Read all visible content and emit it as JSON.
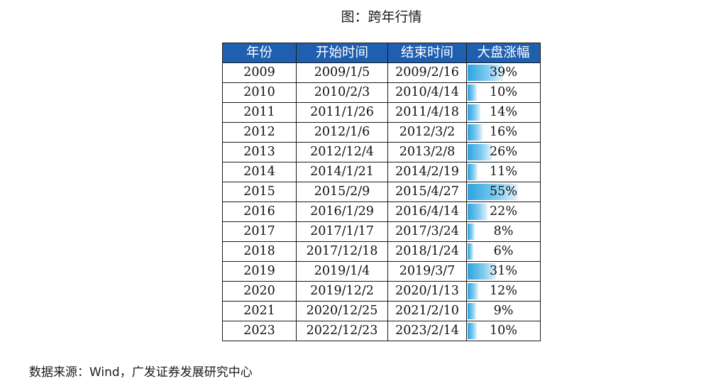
{
  "title": "图：跨年行情",
  "source": "数据来源：Wind，广发证券发展研究中心",
  "colors": {
    "header_bg": "#1f5fb0",
    "bar_start": "#2ca3df",
    "bar_end": "#e3f4fc"
  },
  "chart_data": {
    "type": "table",
    "columns": [
      "年份",
      "开始时间",
      "结束时间",
      "大盘涨幅"
    ],
    "rows": [
      {
        "year": "2009",
        "start": "2009/1/5",
        "end": "2009/2/16",
        "gain": "39%",
        "gain_value": 39
      },
      {
        "year": "2010",
        "start": "2010/2/3",
        "end": "2010/4/14",
        "gain": "10%",
        "gain_value": 10
      },
      {
        "year": "2011",
        "start": "2011/1/26",
        "end": "2011/4/18",
        "gain": "14%",
        "gain_value": 14
      },
      {
        "year": "2012",
        "start": "2012/1/6",
        "end": "2012/3/2",
        "gain": "16%",
        "gain_value": 16
      },
      {
        "year": "2013",
        "start": "2012/12/4",
        "end": "2013/2/8",
        "gain": "26%",
        "gain_value": 26
      },
      {
        "year": "2014",
        "start": "2014/1/21",
        "end": "2014/2/19",
        "gain": "11%",
        "gain_value": 11
      },
      {
        "year": "2015",
        "start": "2015/2/9",
        "end": "2015/4/27",
        "gain": "55%",
        "gain_value": 55
      },
      {
        "year": "2016",
        "start": "2016/1/29",
        "end": "2016/4/14",
        "gain": "22%",
        "gain_value": 22
      },
      {
        "year": "2017",
        "start": "2017/1/17",
        "end": "2017/3/24",
        "gain": "8%",
        "gain_value": 8
      },
      {
        "year": "2018",
        "start": "2017/12/18",
        "end": "2018/1/24",
        "gain": "6%",
        "gain_value": 6
      },
      {
        "year": "2019",
        "start": "2019/1/4",
        "end": "2019/3/7",
        "gain": "31%",
        "gain_value": 31
      },
      {
        "year": "2020",
        "start": "2019/12/2",
        "end": "2020/1/13",
        "gain": "12%",
        "gain_value": 12
      },
      {
        "year": "2021",
        "start": "2020/12/25",
        "end": "2021/2/10",
        "gain": "9%",
        "gain_value": 9
      },
      {
        "year": "2023",
        "start": "2022/12/23",
        "end": "2023/2/14",
        "gain": "10%",
        "gain_value": 10
      }
    ],
    "bar_max": 55
  }
}
